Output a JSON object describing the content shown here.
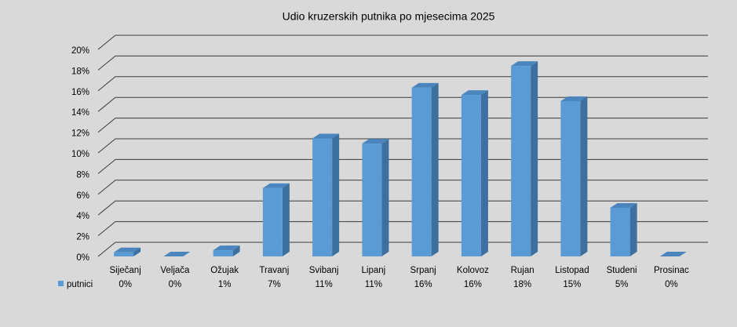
{
  "chart_data": {
    "type": "bar3d",
    "title": "Udio kruzerskih putnika po mjesecima 2025",
    "categories": [
      "Siječanj",
      "Veljača",
      "Ožujak",
      "Travanj",
      "Svibanj",
      "Lipanj",
      "Srpanj",
      "Kolovoz",
      "Rujan",
      "Listopad",
      "Studeni",
      "Prosinac"
    ],
    "series": [
      {
        "name": "putnici",
        "color": "#5b9bd5",
        "values": [
          0.4,
          0,
          0.6,
          6.6,
          11.4,
          10.9,
          16.3,
          15.6,
          18.4,
          15.0,
          4.7,
          0
        ],
        "value_labels": [
          "0%",
          "0%",
          "1%",
          "7%",
          "11%",
          "11%",
          "16%",
          "16%",
          "18%",
          "15%",
          "5%",
          "0%"
        ]
      }
    ],
    "ylim": [
      0,
      20
    ],
    "yticks": [
      {
        "value": 0,
        "label": "0%"
      },
      {
        "value": 2,
        "label": "2%"
      },
      {
        "value": 4,
        "label": "4%"
      },
      {
        "value": 6,
        "label": "6%"
      },
      {
        "value": 8,
        "label": "8%"
      },
      {
        "value": 10,
        "label": "10%"
      },
      {
        "value": 12,
        "label": "12%"
      },
      {
        "value": 14,
        "label": "14%"
      },
      {
        "value": 16,
        "label": "16%"
      },
      {
        "value": 18,
        "label": "18%"
      },
      {
        "value": 20,
        "label": "20%"
      }
    ],
    "grid": true
  }
}
